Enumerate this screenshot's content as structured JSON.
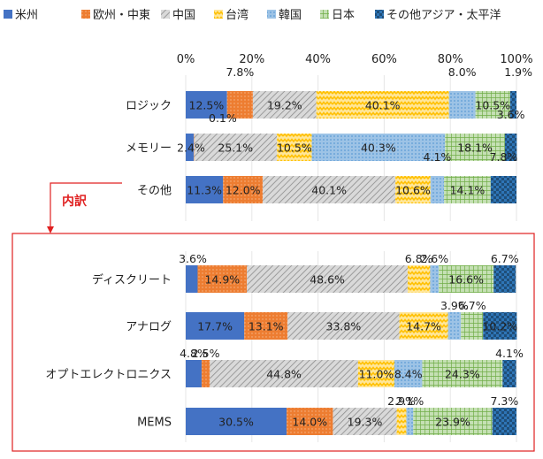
{
  "chart_data": {
    "type": "bar",
    "stacked": true,
    "orientation": "horizontal",
    "percent": true,
    "xlim": [
      0,
      100
    ],
    "xticks": [
      "0%",
      "20%",
      "40%",
      "60%",
      "80%",
      "100%"
    ],
    "grid": true,
    "legend_position": "top",
    "categories": [
      "ロジック",
      "メモリー",
      "その他",
      "ディスクリート",
      "アナログ",
      "オプトエレクトロニクス",
      "MEMS"
    ],
    "series": [
      {
        "name": "米州",
        "color": "#4472c4",
        "pattern": "solid",
        "values": [
          12.5,
          2.4,
          11.3,
          3.6,
          17.7,
          4.8,
          30.5
        ],
        "labels": [
          "12.5%",
          "2.4%",
          "11.3%",
          "3.6%",
          "17.7%",
          "4.8%",
          "30.5%"
        ]
      },
      {
        "name": "欧州・中東",
        "color": "#ed7d31",
        "pattern": "dots",
        "values": [
          7.8,
          0.1,
          12.0,
          14.9,
          13.1,
          2.5,
          14.0
        ],
        "labels": [
          "7.8%",
          "0.1%",
          "12.0%",
          "14.9%",
          "13.1%",
          "2.5%",
          "14.0%"
        ]
      },
      {
        "name": "中国",
        "color": "#a5a5a5",
        "pattern": "diagonal",
        "values": [
          19.2,
          25.1,
          40.1,
          48.6,
          33.8,
          44.8,
          19.3
        ],
        "labels": [
          "19.2%",
          "25.1%",
          "40.1%",
          "48.6%",
          "33.8%",
          "44.8%",
          "19.3%"
        ]
      },
      {
        "name": "台湾",
        "color": "#ffc000",
        "pattern": "zigzag",
        "values": [
          40.1,
          10.5,
          10.6,
          6.8,
          14.7,
          11.0,
          2.9
        ],
        "labels": [
          "40.1%",
          "10.5%",
          "10.6%",
          "6.8%",
          "14.7%",
          "11.0%",
          "2.9%"
        ]
      },
      {
        "name": "韓国",
        "color": "#5b9bd5",
        "pattern": "dots",
        "values": [
          8.0,
          40.3,
          4.1,
          2.6,
          3.9,
          8.4,
          2.1
        ],
        "labels": [
          "8.0%",
          "40.3%",
          "4.1%",
          "2.6%",
          "3.9%",
          "8.4%",
          "2.1%"
        ]
      },
      {
        "name": "日本",
        "color": "#70ad47",
        "pattern": "grid",
        "values": [
          10.5,
          18.1,
          14.1,
          16.6,
          6.7,
          24.3,
          23.9
        ],
        "labels": [
          "10.5%",
          "18.1%",
          "14.1%",
          "16.6%",
          "6.7%",
          "24.3%",
          "23.9%"
        ]
      },
      {
        "name": "その他アジア・太平洋",
        "color": "#2e75b6",
        "pattern": "checker",
        "values": [
          1.9,
          3.6,
          7.8,
          6.7,
          10.2,
          4.1,
          7.3
        ],
        "labels": [
          "1.9%",
          "3.6%",
          "7.8%",
          "6.7%",
          "10.2%",
          "4.1%",
          "7.3%"
        ]
      }
    ],
    "annotation": "内訳"
  }
}
